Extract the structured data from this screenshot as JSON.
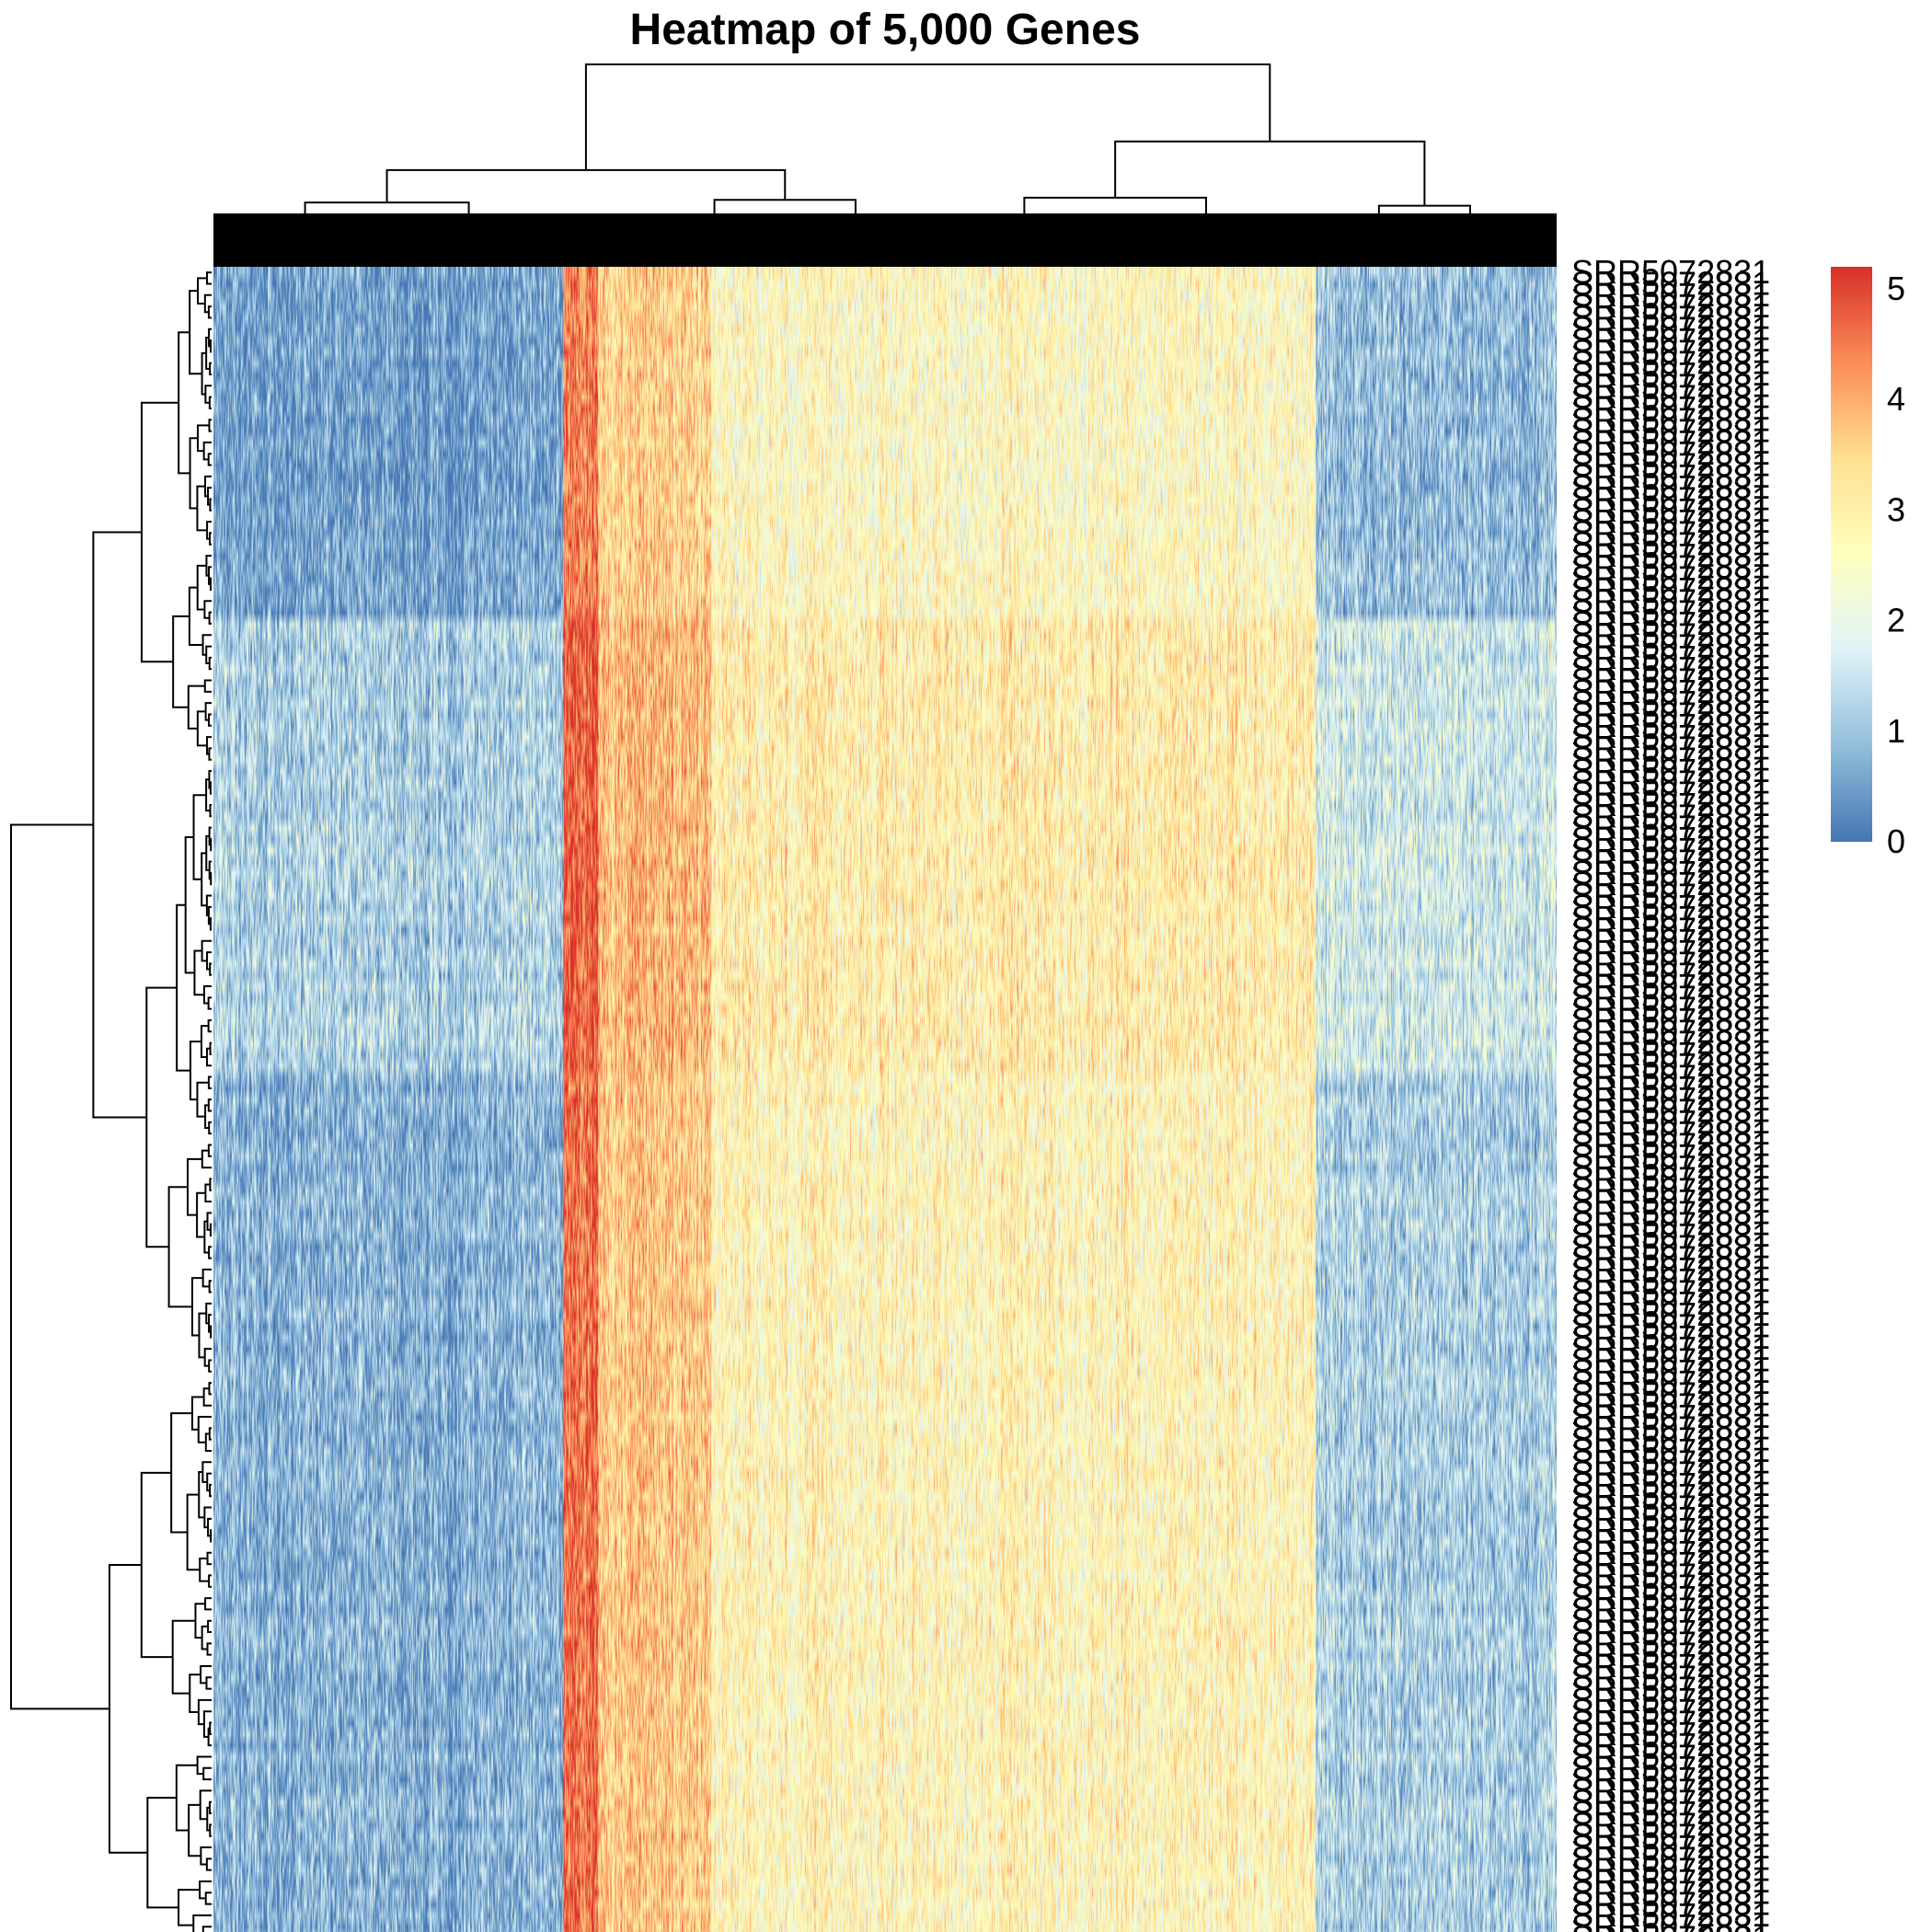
{
  "chart_data": {
    "type": "heatmap",
    "title": "Heatmap of 5,000 Genes",
    "n_rows": 149,
    "n_columns": 5000,
    "value_range": [
      0,
      5.2
    ],
    "legend": {
      "position": "right",
      "ticks": [
        0,
        1,
        2,
        3,
        4,
        5
      ],
      "colors": [
        "#4575b4",
        "#91bfdb",
        "#e0f3f8",
        "#ffffbf",
        "#fee090",
        "#fc8d59",
        "#d73027"
      ]
    },
    "row_clusters_top_to_bottom": [
      {
        "rows": 31,
        "baseline": 0.45
      },
      {
        "rows": 40,
        "baseline": 1.75
      },
      {
        "rows": 78,
        "baseline": 0.95
      }
    ],
    "column_profile": [
      {
        "from_column": 0,
        "to_column": 1300,
        "mean": 0.8
      },
      {
        "from_column": 1300,
        "to_column": 1430,
        "mean": 4.6
      },
      {
        "from_column": 1430,
        "to_column": 1850,
        "mean": 3.6
      },
      {
        "from_column": 1850,
        "to_column": 4100,
        "mean": 2.8
      },
      {
        "from_column": 4100,
        "to_column": 5000,
        "mean": 1.2
      }
    ],
    "row_labels_visible": [
      "SRR5072831",
      "SRR5073079"
    ]
  }
}
